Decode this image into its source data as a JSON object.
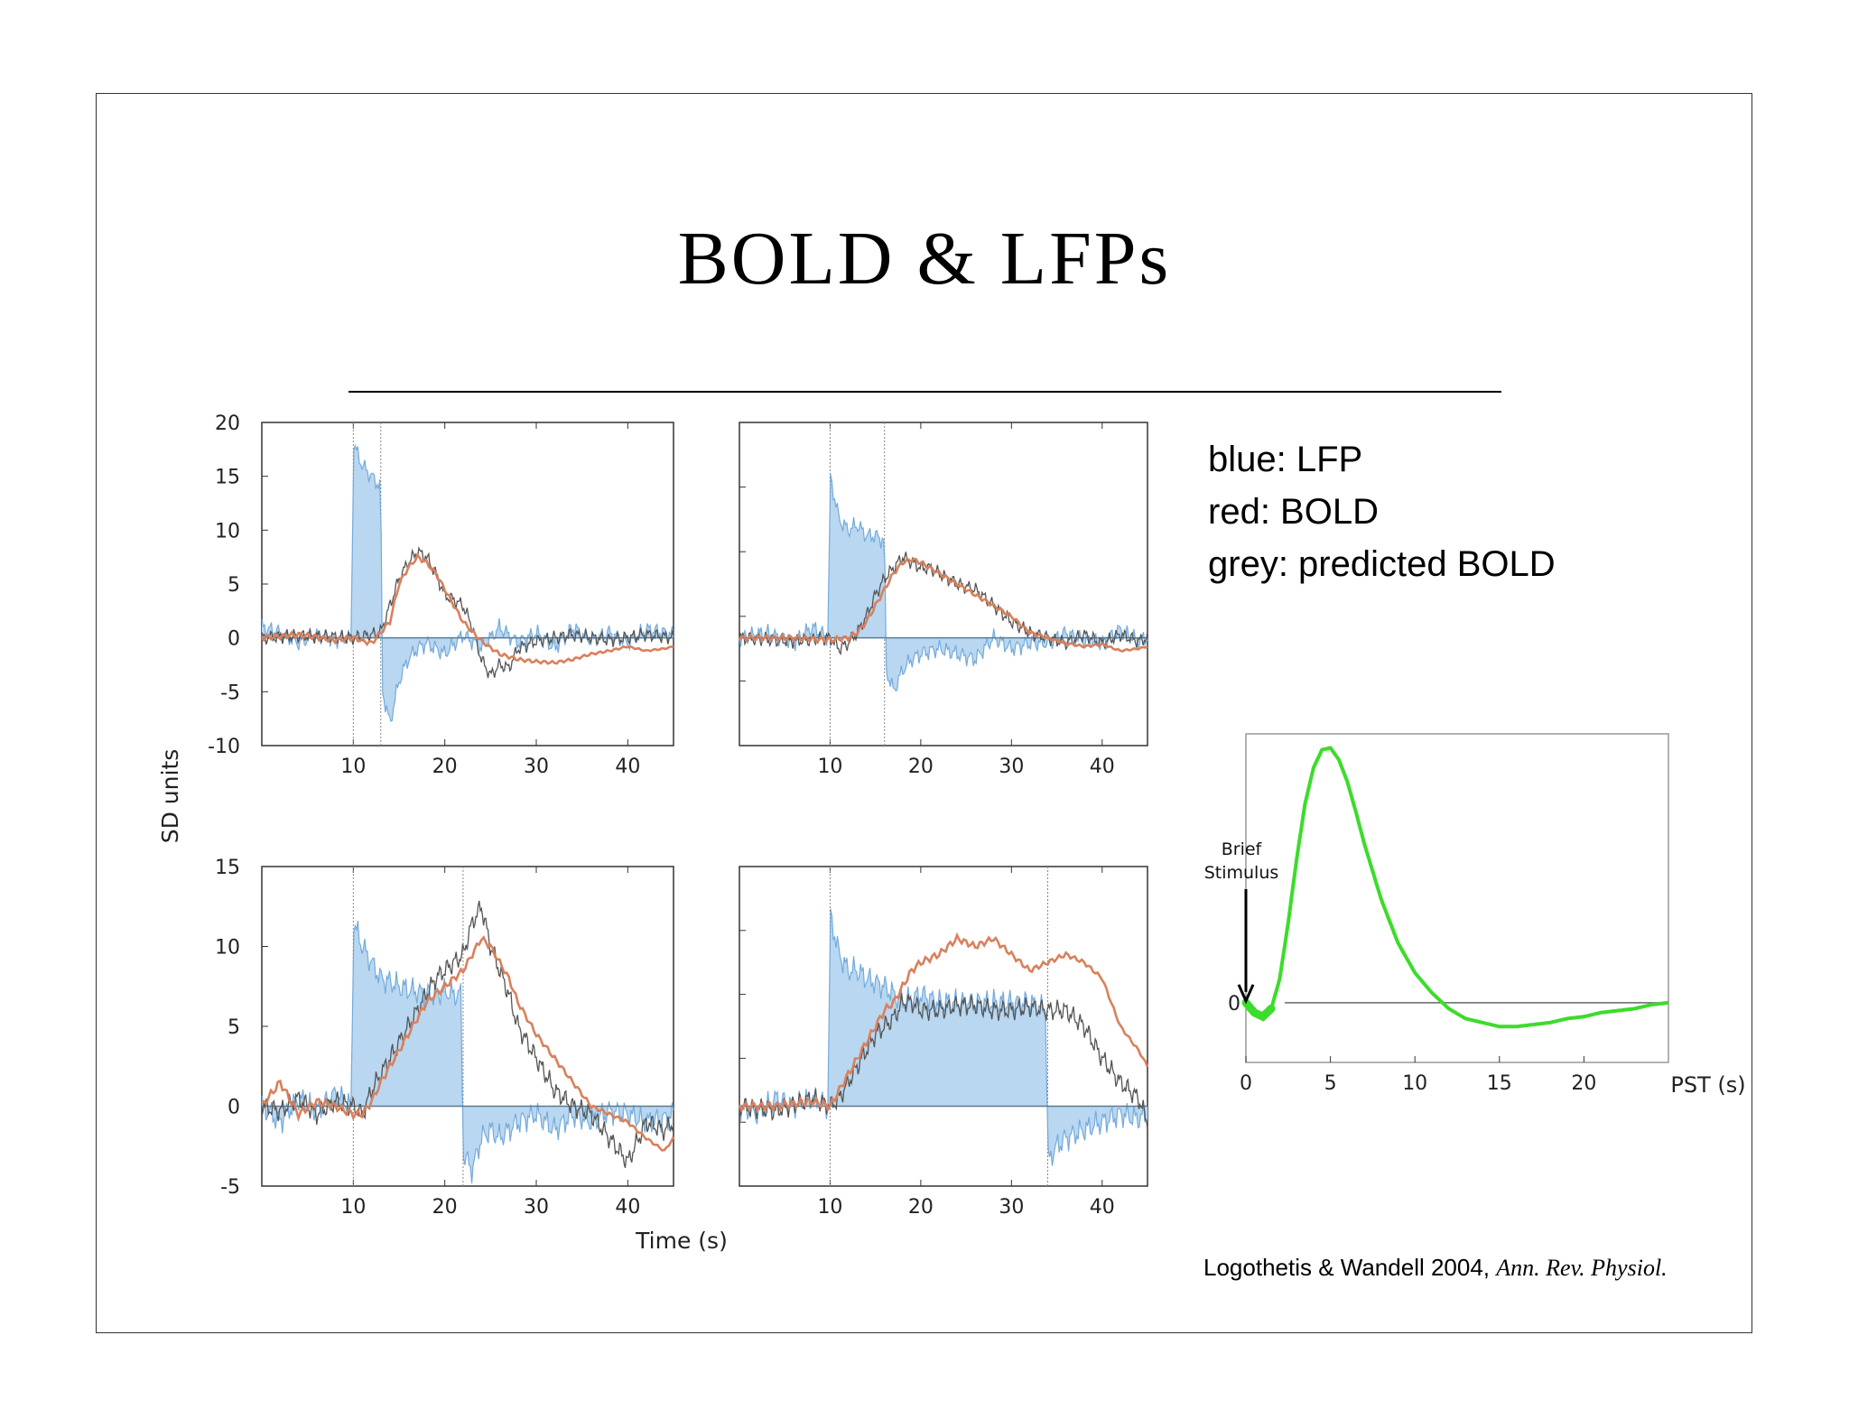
{
  "title": "BOLD & LFPs",
  "legend": {
    "lines": [
      "blue: LFP",
      "red: BOLD",
      "grey: predicted BOLD"
    ],
    "colors": {
      "lfp": "#5b9bd5",
      "lfp_fill": "#b9d7f0",
      "bold": "#d9805c",
      "predicted": "#555555"
    }
  },
  "citation": {
    "authors": "Logothetis & Wandell 2004,",
    "journal": "Ann. Rev. Physiol."
  },
  "chart_data": [
    {
      "type": "line",
      "panel": "top-left",
      "xlim": [
        0,
        45
      ],
      "ylim": [
        -10,
        20
      ],
      "xticks": [
        10,
        20,
        30,
        40
      ],
      "yticks": [
        20,
        15,
        10,
        5,
        0,
        -5,
        -10
      ],
      "ylabel": "SD units",
      "stimulus": [
        10,
        13
      ],
      "series": [
        {
          "name": "LFP",
          "x": [
            0,
            2,
            4,
            6,
            8,
            9.8,
            10,
            11,
            12,
            13,
            13.2,
            14,
            15,
            16,
            17,
            18,
            20,
            22,
            24,
            26,
            28,
            30,
            32,
            34,
            36,
            38,
            40,
            42,
            44,
            45
          ],
          "y": [
            1,
            0.5,
            -0.5,
            0.3,
            -0.2,
            0,
            18,
            16,
            15,
            14,
            -5,
            -8,
            -4,
            -2,
            -1,
            -0.5,
            -1.5,
            0.3,
            -1,
            1,
            -0.5,
            0.5,
            -1,
            1,
            -0.3,
            0.5,
            -0.5,
            0.8,
            0.5,
            0.3
          ]
        },
        {
          "name": "BOLD",
          "x": [
            0,
            4,
            8,
            10,
            12,
            14,
            15,
            16,
            17,
            18,
            19,
            20,
            21,
            22,
            24,
            26,
            28,
            30,
            32,
            34,
            36,
            38,
            40,
            42,
            44,
            45
          ],
          "y": [
            0,
            0.3,
            -0.2,
            0,
            -0.5,
            1.5,
            5,
            6.5,
            7.5,
            7,
            6,
            4.5,
            3,
            1.5,
            -0.3,
            -1.5,
            -2,
            -2.2,
            -2.3,
            -2,
            -1.5,
            -1.2,
            -0.8,
            -1.2,
            -1,
            -0.8
          ]
        },
        {
          "name": "predicted BOLD",
          "x": [
            0,
            4,
            8,
            10,
            12,
            13,
            14,
            15,
            16,
            17,
            18,
            19,
            20,
            21,
            22,
            23,
            24,
            25,
            26,
            27,
            28,
            30,
            34,
            38,
            42,
            45
          ],
          "y": [
            0,
            0.2,
            0.1,
            0,
            0.3,
            0.5,
            3,
            5.5,
            7,
            8,
            7.5,
            6,
            4,
            3.5,
            3,
            1,
            -2,
            -3.5,
            -2.5,
            -2.8,
            -1,
            -0.3,
            0.3,
            -0.2,
            0.3,
            0
          ]
        }
      ]
    },
    {
      "type": "line",
      "panel": "top-right",
      "xlim": [
        0,
        45
      ],
      "ylim": [
        -10,
        20
      ],
      "xticks": [
        10,
        20,
        30,
        40
      ],
      "stimulus": [
        10,
        16
      ],
      "series": [
        {
          "name": "LFP",
          "x": [
            0,
            3,
            6,
            8,
            9.8,
            10,
            11,
            12,
            13,
            14,
            15,
            16,
            16.2,
            17,
            18,
            19,
            20,
            22,
            24,
            26,
            28,
            30,
            32,
            34,
            36,
            38,
            40,
            42,
            44,
            45
          ],
          "y": [
            0,
            0.5,
            -0.5,
            1,
            0,
            15,
            11,
            10,
            10.5,
            9.5,
            9.5,
            9,
            -3,
            -5,
            -3,
            -2,
            -1.5,
            -1,
            -1.5,
            -2,
            0,
            -1,
            -0.5,
            -0.5,
            0.5,
            -0.3,
            -0.5,
            0.8,
            -0.3,
            0
          ]
        },
        {
          "name": "BOLD",
          "x": [
            0,
            6,
            10,
            12,
            13,
            14,
            15,
            16,
            17,
            18,
            19,
            20,
            22,
            24,
            26,
            28,
            30,
            32,
            34,
            36,
            38,
            40,
            42,
            44,
            45
          ],
          "y": [
            0,
            0,
            -0.2,
            0,
            0.5,
            1.5,
            3,
            4.5,
            6,
            7,
            7.3,
            7,
            6,
            5,
            4,
            3,
            2,
            0.5,
            0,
            -0.5,
            -0.8,
            -0.6,
            -1.2,
            -1,
            -0.8
          ]
        },
        {
          "name": "predicted BOLD",
          "x": [
            0,
            6,
            10,
            11,
            12,
            13,
            14,
            15,
            16,
            17,
            18,
            19,
            20,
            21,
            22,
            24,
            26,
            28,
            30,
            32,
            34,
            36,
            38,
            40,
            42,
            44,
            45
          ],
          "y": [
            0,
            -0.3,
            0,
            -1,
            -0.5,
            0.5,
            2,
            4,
            5.5,
            6.5,
            7.5,
            7,
            6.5,
            6.5,
            6,
            5,
            4.5,
            3,
            1.5,
            0.5,
            0,
            -0.5,
            0.3,
            -0.5,
            0.3,
            -0.3,
            0
          ]
        }
      ]
    },
    {
      "type": "line",
      "panel": "bottom-left",
      "xlim": [
        0,
        45
      ],
      "ylim": [
        -5,
        15
      ],
      "xticks": [
        10,
        20,
        30,
        40
      ],
      "yticks": [
        15,
        10,
        5,
        0,
        -5
      ],
      "xlabel": "",
      "stimulus": [
        10,
        22
      ],
      "series": [
        {
          "name": "LFP",
          "x": [
            0,
            2,
            4,
            6,
            8,
            9.8,
            10,
            11,
            12,
            13,
            14,
            15,
            16,
            17,
            18,
            19,
            20,
            21,
            21.8,
            22,
            23,
            24,
            25,
            26,
            28,
            30,
            32,
            34,
            36,
            38,
            40,
            42,
            44,
            45
          ],
          "y": [
            0,
            -1,
            0.5,
            -0.3,
            0.8,
            0,
            11.5,
            10,
            9,
            8,
            7.8,
            7.5,
            7.3,
            7.2,
            7,
            7,
            7.2,
            7,
            7,
            -3,
            -4,
            -2,
            -1.5,
            -2,
            -1,
            -0.5,
            -1.5,
            -0.5,
            -1,
            -0.3,
            -0.5,
            -1,
            -0.8,
            -0.5
          ]
        },
        {
          "name": "BOLD",
          "x": [
            0,
            2,
            4,
            6,
            8,
            10,
            11,
            12,
            13,
            14,
            15,
            16,
            17,
            18,
            19,
            20,
            21,
            22,
            23,
            24,
            25,
            26,
            27,
            28,
            30,
            32,
            34,
            36,
            38,
            40,
            42,
            44,
            45
          ],
          "y": [
            0,
            1.5,
            -0.5,
            0.3,
            0,
            -0.5,
            -0.5,
            0.3,
            1.5,
            2.5,
            3.5,
            4.5,
            5.5,
            6.5,
            7,
            7.5,
            8,
            8.5,
            9.5,
            10.5,
            10,
            9,
            8,
            6.5,
            4.5,
            3,
            1.5,
            0,
            -0.5,
            -1,
            -2,
            -2.8,
            -2
          ]
        },
        {
          "name": "predicted BOLD",
          "x": [
            0,
            2,
            4,
            6,
            8,
            10,
            11,
            12,
            13,
            14,
            15,
            16,
            17,
            18,
            19,
            20,
            21,
            22,
            23,
            24,
            25,
            26,
            27,
            28,
            30,
            32,
            34,
            36,
            38,
            40,
            42,
            44,
            45
          ],
          "y": [
            0,
            -0.3,
            0.5,
            -0.5,
            0.3,
            0,
            -0.5,
            1,
            2,
            3,
            4,
            5,
            6,
            7,
            8,
            8.5,
            9,
            9.5,
            11.5,
            12.5,
            10,
            8.5,
            7,
            5,
            3,
            1,
            0,
            -0.5,
            -2,
            -3.5,
            -1,
            -1.5,
            -1
          ]
        }
      ]
    },
    {
      "type": "line",
      "panel": "bottom-right",
      "xlim": [
        0,
        45
      ],
      "ylim": [
        -5,
        15
      ],
      "xticks": [
        10,
        20,
        30,
        40
      ],
      "stimulus": [
        10,
        34
      ],
      "series": [
        {
          "name": "LFP",
          "x": [
            0,
            2,
            4,
            6,
            8,
            9.8,
            10,
            11,
            12,
            13,
            14,
            16,
            18,
            20,
            22,
            24,
            26,
            28,
            30,
            32,
            33.8,
            34,
            35,
            36,
            38,
            40,
            42,
            44,
            45
          ],
          "y": [
            0,
            -0.5,
            0.5,
            0,
            0.5,
            0,
            12,
            9.5,
            8.5,
            8.5,
            8,
            7.5,
            6.5,
            7,
            6.5,
            6.5,
            6.5,
            6.5,
            6.5,
            6.5,
            6,
            -3.5,
            -2.5,
            -2,
            -1.5,
            -1,
            -0.5,
            -0.8,
            -0.5
          ]
        },
        {
          "name": "BOLD",
          "x": [
            0,
            4,
            8,
            10,
            11,
            12,
            13,
            14,
            15,
            16,
            17,
            18,
            19,
            20,
            22,
            24,
            26,
            28,
            30,
            32,
            34,
            36,
            38,
            40,
            42,
            44,
            45
          ],
          "y": [
            0,
            0,
            0.3,
            0,
            1,
            2,
            3,
            4,
            5,
            6,
            6.5,
            7.5,
            8.5,
            9,
            9.5,
            10.5,
            10,
            10.5,
            9.5,
            8.5,
            9,
            9.5,
            9,
            8,
            5,
            3.5,
            2.5
          ]
        },
        {
          "name": "predicted BOLD",
          "x": [
            0,
            4,
            8,
            10,
            11,
            12,
            13,
            14,
            15,
            16,
            17,
            18,
            19,
            20,
            22,
            24,
            26,
            28,
            30,
            32,
            34,
            36,
            38,
            40,
            42,
            44,
            45
          ],
          "y": [
            0,
            -0.3,
            0.5,
            0,
            0.5,
            1.5,
            2.5,
            3.5,
            4.5,
            5,
            5.5,
            6.5,
            6.5,
            6,
            6,
            6.3,
            6.3,
            6,
            6,
            6.2,
            6,
            6,
            5,
            3,
            1.5,
            0.5,
            -1
          ]
        }
      ]
    },
    {
      "type": "line",
      "panel": "hrf",
      "xlim": [
        0,
        25
      ],
      "ylim": [
        -0.3,
        1.35
      ],
      "xticks": [
        0,
        5,
        10,
        15,
        20
      ],
      "xlabel": "PST (s)",
      "zero_label": "0",
      "annotation": "Brief Stimulus",
      "series": [
        {
          "name": "HRF",
          "x": [
            0,
            0.5,
            1,
            1.5,
            2,
            2.5,
            3,
            3.5,
            4,
            4.5,
            5,
            5.5,
            6,
            6.5,
            7,
            8,
            9,
            10,
            11,
            12,
            13,
            14,
            15,
            16,
            17,
            18,
            19,
            20,
            21,
            22,
            23,
            24,
            25
          ],
          "y": [
            0,
            -0.05,
            -0.07,
            -0.03,
            0.12,
            0.4,
            0.72,
            1.0,
            1.18,
            1.27,
            1.28,
            1.22,
            1.11,
            0.96,
            0.8,
            0.52,
            0.3,
            0.15,
            0.05,
            -0.03,
            -0.08,
            -0.1,
            -0.12,
            -0.12,
            -0.11,
            -0.1,
            -0.08,
            -0.07,
            -0.05,
            -0.04,
            -0.03,
            -0.01,
            0
          ]
        }
      ]
    }
  ]
}
